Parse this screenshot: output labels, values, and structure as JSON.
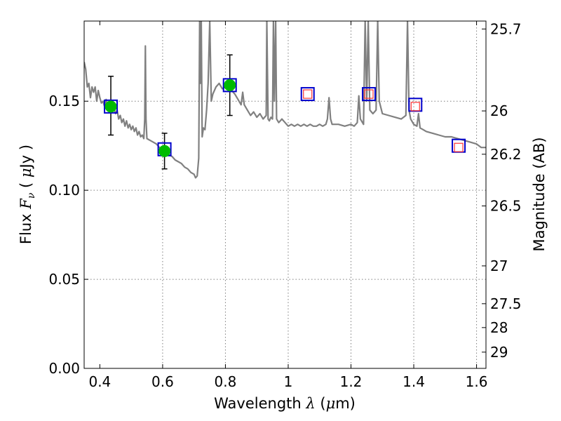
{
  "chart_data": {
    "type": "scatter",
    "xlabel": "Wavelength  λ (μm)",
    "ylabel": "Flux  Fν  ( μJy )",
    "y2label": "Magnitude (AB)",
    "xlim": [
      0.35,
      1.63
    ],
    "ylim": [
      0.0,
      0.195
    ],
    "grid": true,
    "x_ticks": [
      0.4,
      0.6,
      0.8,
      1.0,
      1.2,
      1.4,
      1.6
    ],
    "x_tick_labels": [
      "0.4",
      "0.6",
      "0.8",
      "1",
      "1.2",
      "1.4",
      "1.6"
    ],
    "y_ticks": [
      0.0,
      0.05,
      0.1,
      0.15
    ],
    "y_tick_labels": [
      "0.00",
      "0.05",
      "0.10",
      "0.15"
    ],
    "y2_ticks": [
      "25.7",
      "26",
      "26.2",
      "26.5",
      "27",
      "27.5",
      "28",
      "29"
    ],
    "colors": {
      "model": "#808080",
      "observed": "#00bb00",
      "model_phot_box": "#0000cc",
      "upper_box": "#ff3333",
      "errorbar": "#000000"
    },
    "model_spectrum": [
      [
        0.35,
        0.172
      ],
      [
        0.355,
        0.168
      ],
      [
        0.36,
        0.158
      ],
      [
        0.365,
        0.16
      ],
      [
        0.37,
        0.152
      ],
      [
        0.375,
        0.158
      ],
      [
        0.38,
        0.155
      ],
      [
        0.385,
        0.158
      ],
      [
        0.39,
        0.15
      ],
      [
        0.395,
        0.156
      ],
      [
        0.4,
        0.152
      ],
      [
        0.405,
        0.149
      ],
      [
        0.41,
        0.15
      ],
      [
        0.415,
        0.147
      ],
      [
        0.42,
        0.151
      ],
      [
        0.425,
        0.146
      ],
      [
        0.43,
        0.147
      ],
      [
        0.435,
        0.145
      ],
      [
        0.44,
        0.148
      ],
      [
        0.445,
        0.146
      ],
      [
        0.45,
        0.143
      ],
      [
        0.455,
        0.145
      ],
      [
        0.46,
        0.14
      ],
      [
        0.465,
        0.142
      ],
      [
        0.47,
        0.138
      ],
      [
        0.475,
        0.14
      ],
      [
        0.48,
        0.136
      ],
      [
        0.485,
        0.139
      ],
      [
        0.49,
        0.135
      ],
      [
        0.495,
        0.137
      ],
      [
        0.5,
        0.134
      ],
      [
        0.505,
        0.136
      ],
      [
        0.51,
        0.133
      ],
      [
        0.515,
        0.135
      ],
      [
        0.52,
        0.131
      ],
      [
        0.525,
        0.133
      ],
      [
        0.53,
        0.13
      ],
      [
        0.535,
        0.131
      ],
      [
        0.54,
        0.129
      ],
      [
        0.543,
        0.14
      ],
      [
        0.545,
        0.181
      ],
      [
        0.547,
        0.14
      ],
      [
        0.55,
        0.129
      ],
      [
        0.56,
        0.128
      ],
      [
        0.57,
        0.127
      ],
      [
        0.58,
        0.126
      ],
      [
        0.59,
        0.124
      ],
      [
        0.6,
        0.123
      ],
      [
        0.61,
        0.122
      ],
      [
        0.62,
        0.12
      ],
      [
        0.63,
        0.119
      ],
      [
        0.64,
        0.117
      ],
      [
        0.65,
        0.116
      ],
      [
        0.66,
        0.115
      ],
      [
        0.67,
        0.113
      ],
      [
        0.68,
        0.112
      ],
      [
        0.69,
        0.11
      ],
      [
        0.7,
        0.109
      ],
      [
        0.705,
        0.107
      ],
      [
        0.71,
        0.108
      ],
      [
        0.715,
        0.118
      ],
      [
        0.718,
        0.195
      ],
      [
        0.72,
        0.16
      ],
      [
        0.723,
        0.195
      ],
      [
        0.726,
        0.13
      ],
      [
        0.73,
        0.135
      ],
      [
        0.735,
        0.134
      ],
      [
        0.74,
        0.145
      ],
      [
        0.745,
        0.16
      ],
      [
        0.75,
        0.195
      ],
      [
        0.755,
        0.15
      ],
      [
        0.76,
        0.154
      ],
      [
        0.77,
        0.158
      ],
      [
        0.78,
        0.16
      ],
      [
        0.79,
        0.157
      ],
      [
        0.8,
        0.158
      ],
      [
        0.81,
        0.159
      ],
      [
        0.82,
        0.156
      ],
      [
        0.83,
        0.154
      ],
      [
        0.84,
        0.151
      ],
      [
        0.85,
        0.148
      ],
      [
        0.855,
        0.155
      ],
      [
        0.86,
        0.148
      ],
      [
        0.87,
        0.145
      ],
      [
        0.88,
        0.142
      ],
      [
        0.89,
        0.144
      ],
      [
        0.9,
        0.141
      ],
      [
        0.91,
        0.143
      ],
      [
        0.92,
        0.14
      ],
      [
        0.93,
        0.142
      ],
      [
        0.932,
        0.195
      ],
      [
        0.936,
        0.14
      ],
      [
        0.94,
        0.139
      ],
      [
        0.945,
        0.141
      ],
      [
        0.95,
        0.14
      ],
      [
        0.953,
        0.195
      ],
      [
        0.956,
        0.15
      ],
      [
        0.96,
        0.195
      ],
      [
        0.963,
        0.14
      ],
      [
        0.97,
        0.138
      ],
      [
        0.98,
        0.14
      ],
      [
        0.99,
        0.138
      ],
      [
        1.0,
        0.136
      ],
      [
        1.01,
        0.137
      ],
      [
        1.02,
        0.136
      ],
      [
        1.03,
        0.137
      ],
      [
        1.04,
        0.136
      ],
      [
        1.05,
        0.137
      ],
      [
        1.06,
        0.136
      ],
      [
        1.07,
        0.137
      ],
      [
        1.08,
        0.136
      ],
      [
        1.09,
        0.136
      ],
      [
        1.1,
        0.137
      ],
      [
        1.11,
        0.136
      ],
      [
        1.12,
        0.137
      ],
      [
        1.125,
        0.14
      ],
      [
        1.13,
        0.152
      ],
      [
        1.135,
        0.14
      ],
      [
        1.14,
        0.137
      ],
      [
        1.16,
        0.137
      ],
      [
        1.18,
        0.136
      ],
      [
        1.2,
        0.137
      ],
      [
        1.21,
        0.136
      ],
      [
        1.22,
        0.138
      ],
      [
        1.225,
        0.153
      ],
      [
        1.23,
        0.14
      ],
      [
        1.24,
        0.137
      ],
      [
        1.245,
        0.195
      ],
      [
        1.25,
        0.15
      ],
      [
        1.255,
        0.195
      ],
      [
        1.26,
        0.145
      ],
      [
        1.27,
        0.143
      ],
      [
        1.28,
        0.145
      ],
      [
        1.285,
        0.195
      ],
      [
        1.29,
        0.15
      ],
      [
        1.3,
        0.143
      ],
      [
        1.32,
        0.142
      ],
      [
        1.34,
        0.141
      ],
      [
        1.36,
        0.14
      ],
      [
        1.375,
        0.142
      ],
      [
        1.38,
        0.195
      ],
      [
        1.385,
        0.145
      ],
      [
        1.39,
        0.14
      ],
      [
        1.4,
        0.137
      ],
      [
        1.41,
        0.136
      ],
      [
        1.415,
        0.143
      ],
      [
        1.42,
        0.135
      ],
      [
        1.43,
        0.134
      ],
      [
        1.44,
        0.133
      ],
      [
        1.46,
        0.132
      ],
      [
        1.48,
        0.131
      ],
      [
        1.5,
        0.13
      ],
      [
        1.52,
        0.13
      ],
      [
        1.54,
        0.129
      ],
      [
        1.56,
        0.128
      ],
      [
        1.58,
        0.127
      ],
      [
        1.6,
        0.126
      ],
      [
        1.615,
        0.124
      ],
      [
        1.63,
        0.124
      ]
    ],
    "observed_points": [
      {
        "x": 0.435,
        "y": 0.147,
        "yerr_low": 0.131,
        "yerr_high": 0.164
      },
      {
        "x": 0.606,
        "y": 0.122,
        "yerr_low": 0.112,
        "yerr_high": 0.132
      },
      {
        "x": 0.814,
        "y": 0.159,
        "yerr_low": 0.142,
        "yerr_high": 0.176
      }
    ],
    "model_photometry": [
      {
        "x": 0.435,
        "y": 0.147
      },
      {
        "x": 0.606,
        "y": 0.123
      },
      {
        "x": 0.814,
        "y": 0.159
      },
      {
        "x": 1.062,
        "y": 0.154
      },
      {
        "x": 1.257,
        "y": 0.154
      },
      {
        "x": 1.405,
        "y": 0.148
      },
      {
        "x": 1.543,
        "y": 0.125
      }
    ],
    "upper_limits": [
      {
        "x": 1.062,
        "y": 0.154
      },
      {
        "x": 1.257,
        "y": 0.154
      },
      {
        "x": 1.405,
        "y": 0.147
      },
      {
        "x": 1.543,
        "y": 0.124
      }
    ]
  }
}
